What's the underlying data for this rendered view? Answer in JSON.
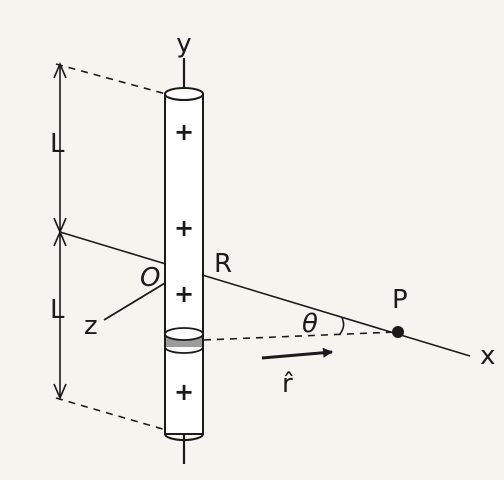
{
  "figure": {
    "axes": {
      "y": "y",
      "x": "x",
      "z": "z"
    },
    "labels": {
      "origin": "O",
      "distance": "R",
      "point": "P",
      "angle": "θ",
      "unit_vector": "r̂",
      "half_length_top": "L",
      "half_length_bottom": "L"
    },
    "charges": [
      "+",
      "+",
      "+",
      "+"
    ],
    "colors": {
      "ink": "#1b1b1b",
      "paper": "#f6f4ef",
      "rod_fill": "#ffffff",
      "element_band": "#8a8a8a"
    }
  }
}
